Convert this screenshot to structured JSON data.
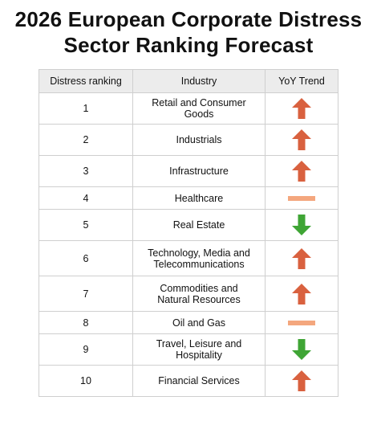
{
  "title": {
    "line1": "2026 European Corporate Distress",
    "line2": "Sector Ranking Forecast"
  },
  "columns": [
    "Distress ranking",
    "Industry",
    "YoY Trend"
  ],
  "colors": {
    "up": "#d9613f",
    "down": "#3fa535",
    "flat": "#f4a77e",
    "header_bg": "#ececec",
    "border": "#cfcfcf"
  },
  "rows": [
    {
      "rank": "1",
      "industry": [
        "Retail and Consumer Goods"
      ],
      "trend": "up"
    },
    {
      "rank": "2",
      "industry": [
        "Industrials"
      ],
      "trend": "up"
    },
    {
      "rank": "3",
      "industry": [
        "Infrastructure"
      ],
      "trend": "up"
    },
    {
      "rank": "4",
      "industry": [
        "Healthcare"
      ],
      "trend": "flat"
    },
    {
      "rank": "5",
      "industry": [
        "Real Estate"
      ],
      "trend": "down"
    },
    {
      "rank": "6",
      "industry": [
        "Technology, Media and",
        "Telecommunications"
      ],
      "trend": "up"
    },
    {
      "rank": "7",
      "industry": [
        "Commodities and",
        "Natural Resources"
      ],
      "trend": "up"
    },
    {
      "rank": "8",
      "industry": [
        "Oil and Gas"
      ],
      "trend": "flat"
    },
    {
      "rank": "9",
      "industry": [
        "Travel, Leisure and Hospitality"
      ],
      "trend": "down"
    },
    {
      "rank": "10",
      "industry": [
        "Financial Services"
      ],
      "trend": "up"
    }
  ]
}
